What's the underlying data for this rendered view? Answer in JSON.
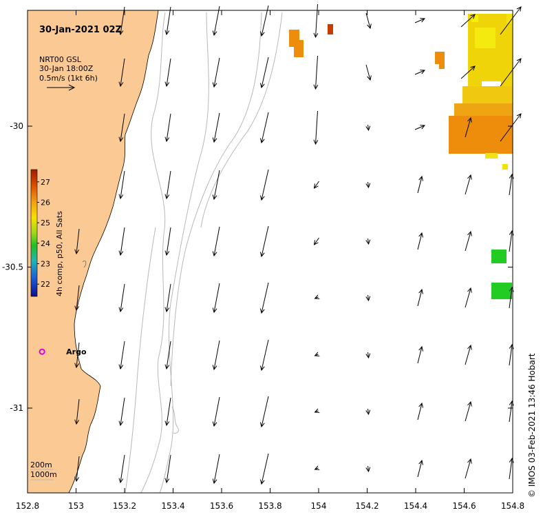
{
  "title": "30-Jan-2021 02Z",
  "legend": {
    "product": "NRT00 GSL",
    "time": "30-Jan 18:00Z",
    "scale": "0.5m/s (1kt 6h)"
  },
  "colorbar": {
    "label": "4h comp, p50, All Sats",
    "ticks": [
      "27",
      "26",
      "25",
      "24",
      "23",
      "22"
    ],
    "values": [
      27,
      26,
      25,
      24,
      23,
      22
    ]
  },
  "argo": {
    "label": "Argo",
    "lon": 152.86,
    "lat": -30.8
  },
  "depth_labels": [
    "200m",
    "1000m"
  ],
  "credit": "© IMOS 03-Feb-2021 13:46 Hobart",
  "x_axis": {
    "ticks": [
      "152.8",
      "153",
      "153.2",
      "153.4",
      "153.6",
      "153.8",
      "154",
      "154.2",
      "154.4",
      "154.6",
      "154.8"
    ],
    "values": [
      152.8,
      153.0,
      153.2,
      153.4,
      153.6,
      153.8,
      154.0,
      154.2,
      154.4,
      154.6,
      154.8
    ]
  },
  "y_axis": {
    "ticks": [
      "-30",
      "-30.5",
      "-31"
    ],
    "values": [
      -30.0,
      -30.5,
      -31.0
    ]
  },
  "colors": {
    "land": "#fbc993",
    "bathymetry": "#b8b8b8",
    "argo": "#e000e0",
    "sst_orange": "#ee8c0c",
    "sst_yellow": "#f2e400",
    "sst_green": "#22cc22",
    "sst_red": "#c83c00"
  }
}
